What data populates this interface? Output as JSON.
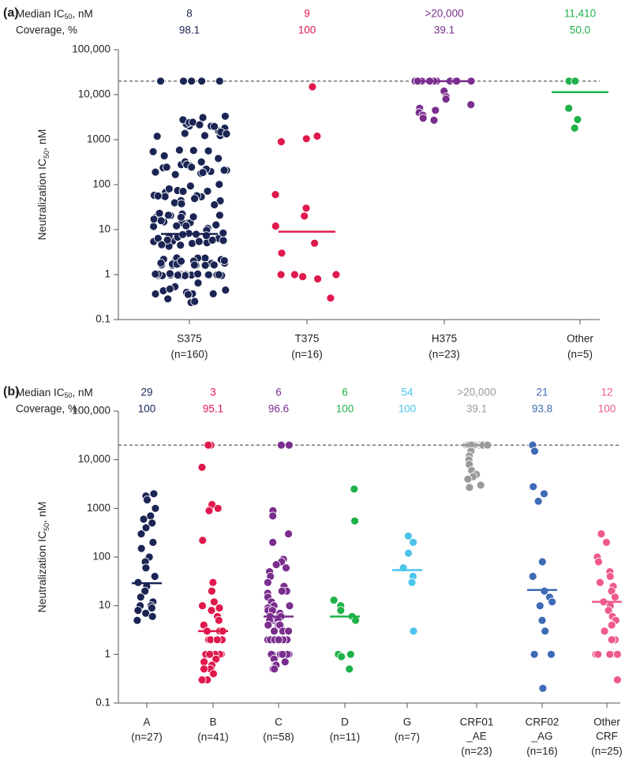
{
  "chart_data": [
    {
      "type": "scatter",
      "panel_label": "(a)",
      "ylabel_main": "Neutralization IC",
      "ylabel_sub": "50",
      "ylabel_tail": ", nM",
      "yscale": "log",
      "ylim": [
        0.1,
        100000
      ],
      "yticks": [
        "0.1",
        "1",
        "10",
        "100",
        "1000",
        "10,000",
        "100,000"
      ],
      "reference_line": 20000,
      "header": {
        "median_label_main": "Median IC",
        "median_label_sub": "50",
        "median_label_tail": ", nM",
        "coverage_label": "Coverage, %"
      },
      "categories": [
        {
          "label": "S375",
          "n": "(n=160)",
          "color": "#1b2554",
          "median": 8,
          "median_text": "8",
          "coverage_text": "98.1"
        },
        {
          "label": "T375",
          "n": "(n=16)",
          "color": "#e0194d",
          "median": 9,
          "median_text": "9",
          "coverage_text": "100"
        },
        {
          "label": "H375",
          "n": "(n=23)",
          "color": "#7a2e8e",
          "median": 20000,
          "median_text": ">20,000",
          "coverage_text": "39.1"
        },
        {
          "label": "Other",
          "n": "(n=5)",
          "color": "#1fb24a",
          "median": 11410,
          "median_text": "11,410",
          "coverage_text": "50.0"
        }
      ]
    },
    {
      "type": "scatter",
      "panel_label": "(b)",
      "ylabel_main": "Neutralization IC",
      "ylabel_sub": "50",
      "ylabel_tail": ", nM",
      "yscale": "log",
      "ylim": [
        0.1,
        100000
      ],
      "yticks": [
        "0.1",
        "1",
        "10",
        "100",
        "1000",
        "10,000",
        "100,000"
      ],
      "reference_line": 20000,
      "header": {
        "median_label_main": "Median IC",
        "median_label_sub": "50",
        "median_label_tail": ", nM",
        "coverage_label": "Coverage, %"
      },
      "categories": [
        {
          "label": "A",
          "n": "(n=27)",
          "color": "#1b2554",
          "median": 29,
          "median_text": "29",
          "coverage_text": "100"
        },
        {
          "label": "B",
          "n": "(n=41)",
          "color": "#e0194d",
          "median": 3,
          "median_text": "3",
          "coverage_text": "95.1"
        },
        {
          "label": "C",
          "n": "(n=58)",
          "color": "#7a2e8e",
          "median": 6,
          "median_text": "6",
          "coverage_text": "96.6"
        },
        {
          "label": "D",
          "n": "(n=11)",
          "color": "#1fb24a",
          "median": 6,
          "median_text": "6",
          "coverage_text": "100"
        },
        {
          "label": "G",
          "n": "(n=7)",
          "color": "#4cc4ec",
          "median": 54,
          "median_text": "54",
          "coverage_text": "100"
        },
        {
          "label": "CRF01\n_AE",
          "n": "(n=23)",
          "color": "#9a9a9a",
          "median": 20000,
          "median_text": ">20,000",
          "coverage_text": "39.1"
        },
        {
          "label": "CRF02\n_AG",
          "n": "(n=16)",
          "color": "#3e6bb6",
          "median": 21,
          "median_text": "21",
          "coverage_text": "93.8"
        },
        {
          "label": "Other\nCRF",
          "n": "(n=25)",
          "color": "#ef5a8c",
          "median": 12,
          "median_text": "12",
          "coverage_text": "100"
        }
      ]
    }
  ]
}
